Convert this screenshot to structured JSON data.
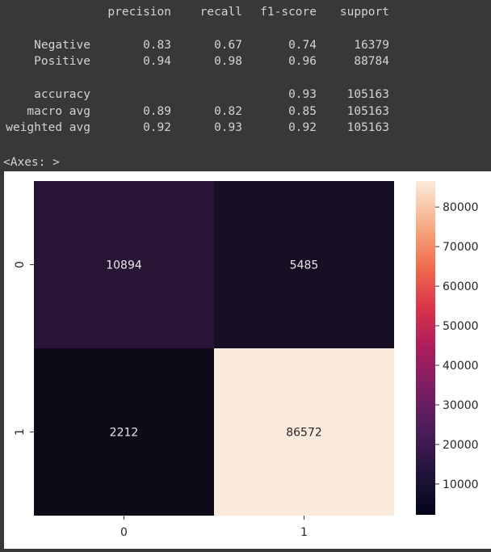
{
  "report": {
    "headers": [
      "precision",
      "recall",
      "f1-score",
      "support"
    ],
    "rows": [
      {
        "label": "Negative",
        "precision": "0.83",
        "recall": "0.67",
        "f1": "0.74",
        "support": "16379"
      },
      {
        "label": "Positive",
        "precision": "0.94",
        "recall": "0.98",
        "f1": "0.96",
        "support": "88784"
      },
      {
        "label": "accuracy",
        "precision": "",
        "recall": "",
        "f1": "0.93",
        "support": "105163"
      },
      {
        "label": "macro avg",
        "precision": "0.89",
        "recall": "0.82",
        "f1": "0.85",
        "support": "105163"
      },
      {
        "label": "weighted avg",
        "precision": "0.92",
        "recall": "0.93",
        "f1": "0.92",
        "support": "105163"
      }
    ]
  },
  "axes_repr": "<Axes: >",
  "chart_data": {
    "type": "heatmap",
    "x_tick_labels": [
      "0",
      "1"
    ],
    "y_tick_labels": [
      "0",
      "1"
    ],
    "matrix": [
      [
        10894,
        5485
      ],
      [
        2212,
        86572
      ]
    ],
    "annotations": [
      [
        "10894",
        "5485"
      ],
      [
        "2212",
        "86572"
      ]
    ],
    "colorbar": {
      "min": 2212,
      "max": 86572,
      "ticks": [
        10000,
        20000,
        30000,
        40000,
        50000,
        60000,
        70000,
        80000
      ],
      "tick_labels": [
        "10000",
        "20000",
        "30000",
        "40000",
        "50000",
        "60000",
        "70000",
        "80000"
      ]
    },
    "colormap": "rocket",
    "cell_colors": [
      [
        "#281535",
        "#160e22"
      ],
      [
        "#0f0a18",
        "#faebdd"
      ]
    ],
    "annotation_text_color": "#e8e8e8",
    "annotation_text_color_light": "#262626"
  }
}
